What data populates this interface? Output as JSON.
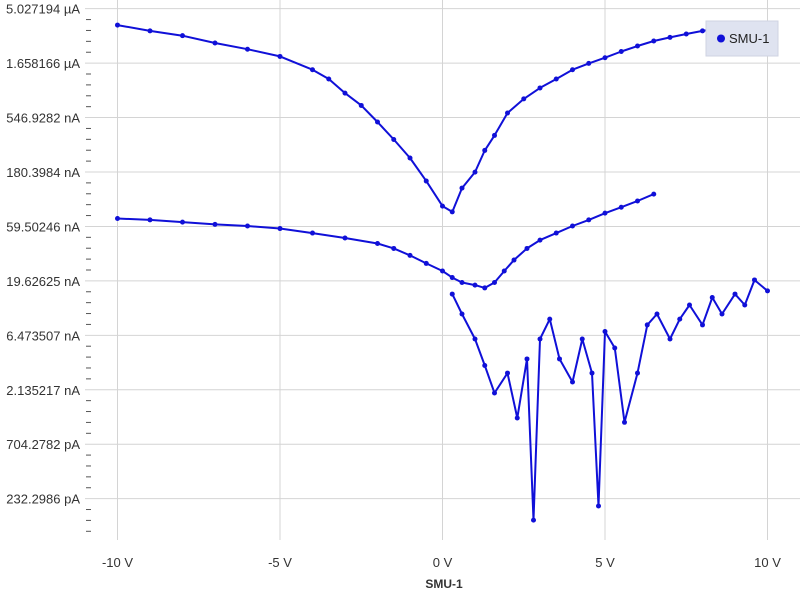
{
  "chart_data": {
    "type": "line",
    "xlabel": "SMU-1",
    "ylabel": "",
    "y_scale": "log",
    "grid": true,
    "legend_position": "top-right",
    "xlim": [
      -11,
      11
    ],
    "x_unit": "V",
    "ylim": [
      1e-10,
      6e-06
    ],
    "x_ticks": [
      {
        "value": -10,
        "label": "-10 V"
      },
      {
        "value": -5,
        "label": "-5 V"
      },
      {
        "value": 0,
        "label": "0 V"
      },
      {
        "value": 5,
        "label": "5 V"
      },
      {
        "value": 10,
        "label": "10 V"
      }
    ],
    "y_ticks": [
      {
        "value": 5.027194e-06,
        "label": "5.027194 µA"
      },
      {
        "value": 1.658166e-06,
        "label": "1.658166 µA"
      },
      {
        "value": 5.469282e-07,
        "label": "546.9282 nA"
      },
      {
        "value": 1.803984e-07,
        "label": "180.3984 nA"
      },
      {
        "value": 5.950246e-08,
        "label": "59.50246 nA"
      },
      {
        "value": 1.962625e-08,
        "label": "19.62625 nA"
      },
      {
        "value": 6.473507e-09,
        "label": "6.473507 nA"
      },
      {
        "value": 2.135217e-09,
        "label": "2.135217 nA"
      },
      {
        "value": 7.042782e-10,
        "label": "704.2782 pA"
      },
      {
        "value": 2.322986e-10,
        "label": "232.2986 pA"
      }
    ],
    "series": [
      {
        "name": "SMU-1",
        "color": "#1010d8",
        "x": [
          -10,
          -9,
          -8,
          -7,
          -6,
          -5,
          -4,
          -3.5,
          -3,
          -2.5,
          -2,
          -1.5,
          -1,
          -0.5,
          0,
          0.3,
          0.6,
          1,
          1.3,
          1.6,
          2,
          2.5,
          3,
          3.5,
          4,
          4.5,
          5,
          5.5,
          6,
          6.5,
          7,
          7.5,
          8,
          8.5,
          9,
          10
        ],
        "y": [
          3.6e-06,
          3.2e-06,
          2.9e-06,
          2.5e-06,
          2.2e-06,
          1.9e-06,
          1.45e-06,
          1.2e-06,
          9e-07,
          7e-07,
          5e-07,
          3.5e-07,
          2.4e-07,
          1.5e-07,
          9e-08,
          8e-08,
          1.3e-07,
          1.8e-07,
          2.8e-07,
          3.8e-07,
          6e-07,
          8e-07,
          1e-06,
          1.2e-06,
          1.45e-06,
          1.65e-06,
          1.85e-06,
          2.1e-06,
          2.35e-06,
          2.6e-06,
          2.8e-06,
          3e-06,
          3.2e-06,
          3.35e-06,
          3.45e-06,
          3.6e-06
        ]
      },
      {
        "name": "SMU-1",
        "color": "#1010d8",
        "x": [
          -10,
          -9,
          -8,
          -7,
          -6,
          -5,
          -4,
          -3,
          -2,
          -1.5,
          -1,
          -0.5,
          0,
          0.3,
          0.6,
          1,
          1.3,
          1.6,
          1.9,
          2.2,
          2.6,
          3,
          3.5,
          4,
          4.5,
          5,
          5.5,
          6,
          6.5
        ],
        "y": [
          7e-08,
          6.8e-08,
          6.5e-08,
          6.2e-08,
          6e-08,
          5.7e-08,
          5.2e-08,
          4.7e-08,
          4.2e-08,
          3.8e-08,
          3.3e-08,
          2.8e-08,
          2.4e-08,
          2.1e-08,
          1.9e-08,
          1.8e-08,
          1.7e-08,
          1.9e-08,
          2.4e-08,
          3e-08,
          3.8e-08,
          4.5e-08,
          5.2e-08,
          6e-08,
          6.8e-08,
          7.8e-08,
          8.8e-08,
          1e-07,
          1.15e-07
        ]
      },
      {
        "name": "SMU-1",
        "color": "#1010d8",
        "x": [
          0.3,
          0.6,
          1,
          1.3,
          1.6,
          2,
          2.3,
          2.6,
          2.8,
          3,
          3.3,
          3.6,
          4,
          4.3,
          4.6,
          4.8,
          5,
          5.3,
          5.6,
          6,
          6.3,
          6.6,
          7,
          7.3,
          7.6,
          8,
          8.3,
          8.6,
          9,
          9.3,
          9.6,
          10
        ],
        "y": [
          1.5e-08,
          1e-08,
          6e-09,
          3.5e-09,
          2e-09,
          3e-09,
          1.2e-09,
          4e-09,
          1.5e-10,
          6e-09,
          9e-09,
          4e-09,
          2.5e-09,
          6e-09,
          3e-09,
          2e-10,
          7e-09,
          5e-09,
          1.1e-09,
          3e-09,
          8e-09,
          1e-08,
          6e-09,
          9e-09,
          1.2e-08,
          8e-09,
          1.4e-08,
          1e-08,
          1.5e-08,
          1.2e-08,
          2e-08,
          1.6e-08
        ]
      }
    ]
  }
}
